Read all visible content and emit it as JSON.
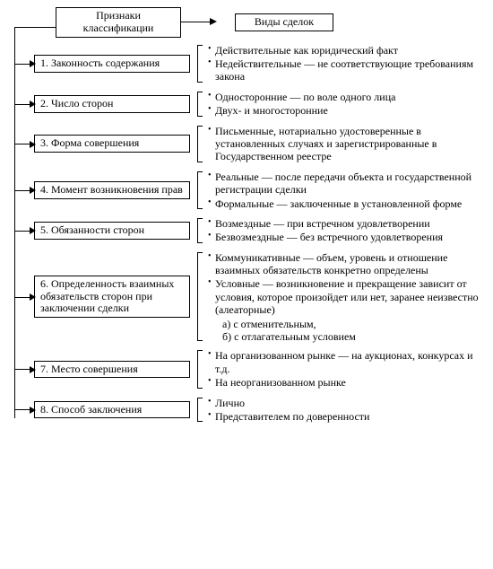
{
  "header": {
    "left": "Признаки классификации",
    "right": "Виды сделок"
  },
  "rows": [
    {
      "label": "1. Законность содержания",
      "items": [
        "Действительные как юридический факт",
        "Недействительные — не соответствующие требованиям закона"
      ]
    },
    {
      "label": "2. Число сторон",
      "items": [
        "Односторонние — по воле одного лица",
        "Двух- и многосторонние"
      ]
    },
    {
      "label": "3. Форма совершения",
      "items": [
        "Письменные, нотариально удостоверенные в установленных случаях и зарегистрированные в Государственном реестре"
      ]
    },
    {
      "label": "4. Момент возникновения прав",
      "items": [
        "Реальные — после передачи объекта и государственной регистрации сделки",
        "Формальные — заключенные в установленной форме"
      ]
    },
    {
      "label": "5. Обязанности сторон",
      "items": [
        "Возмездные — при встречном удовлетворении",
        "Безвозмездные — без встречного удовлетворения"
      ]
    },
    {
      "label": "6. Определенность взаимных обязательств сторон при заключении сделки",
      "items": [
        "Коммуникативные — объем, уровень и отношение взаимных обязательств конкретно определены",
        "Условные — возникновение и прекращение зависит от условия, которое произойдет или нет, заранее неизвестно (алеаторные)"
      ],
      "subitems": [
        "а) с отменительным,",
        "б) с отлагательным условием"
      ]
    },
    {
      "label": "7. Место совершения",
      "items": [
        "На организованном рынке — на аукционах, конкурсах и т.д.",
        "На неорганизованном рынке"
      ]
    },
    {
      "label": "8. Способ заключения",
      "items": [
        "Лично",
        "Представителем по доверенности"
      ]
    }
  ]
}
